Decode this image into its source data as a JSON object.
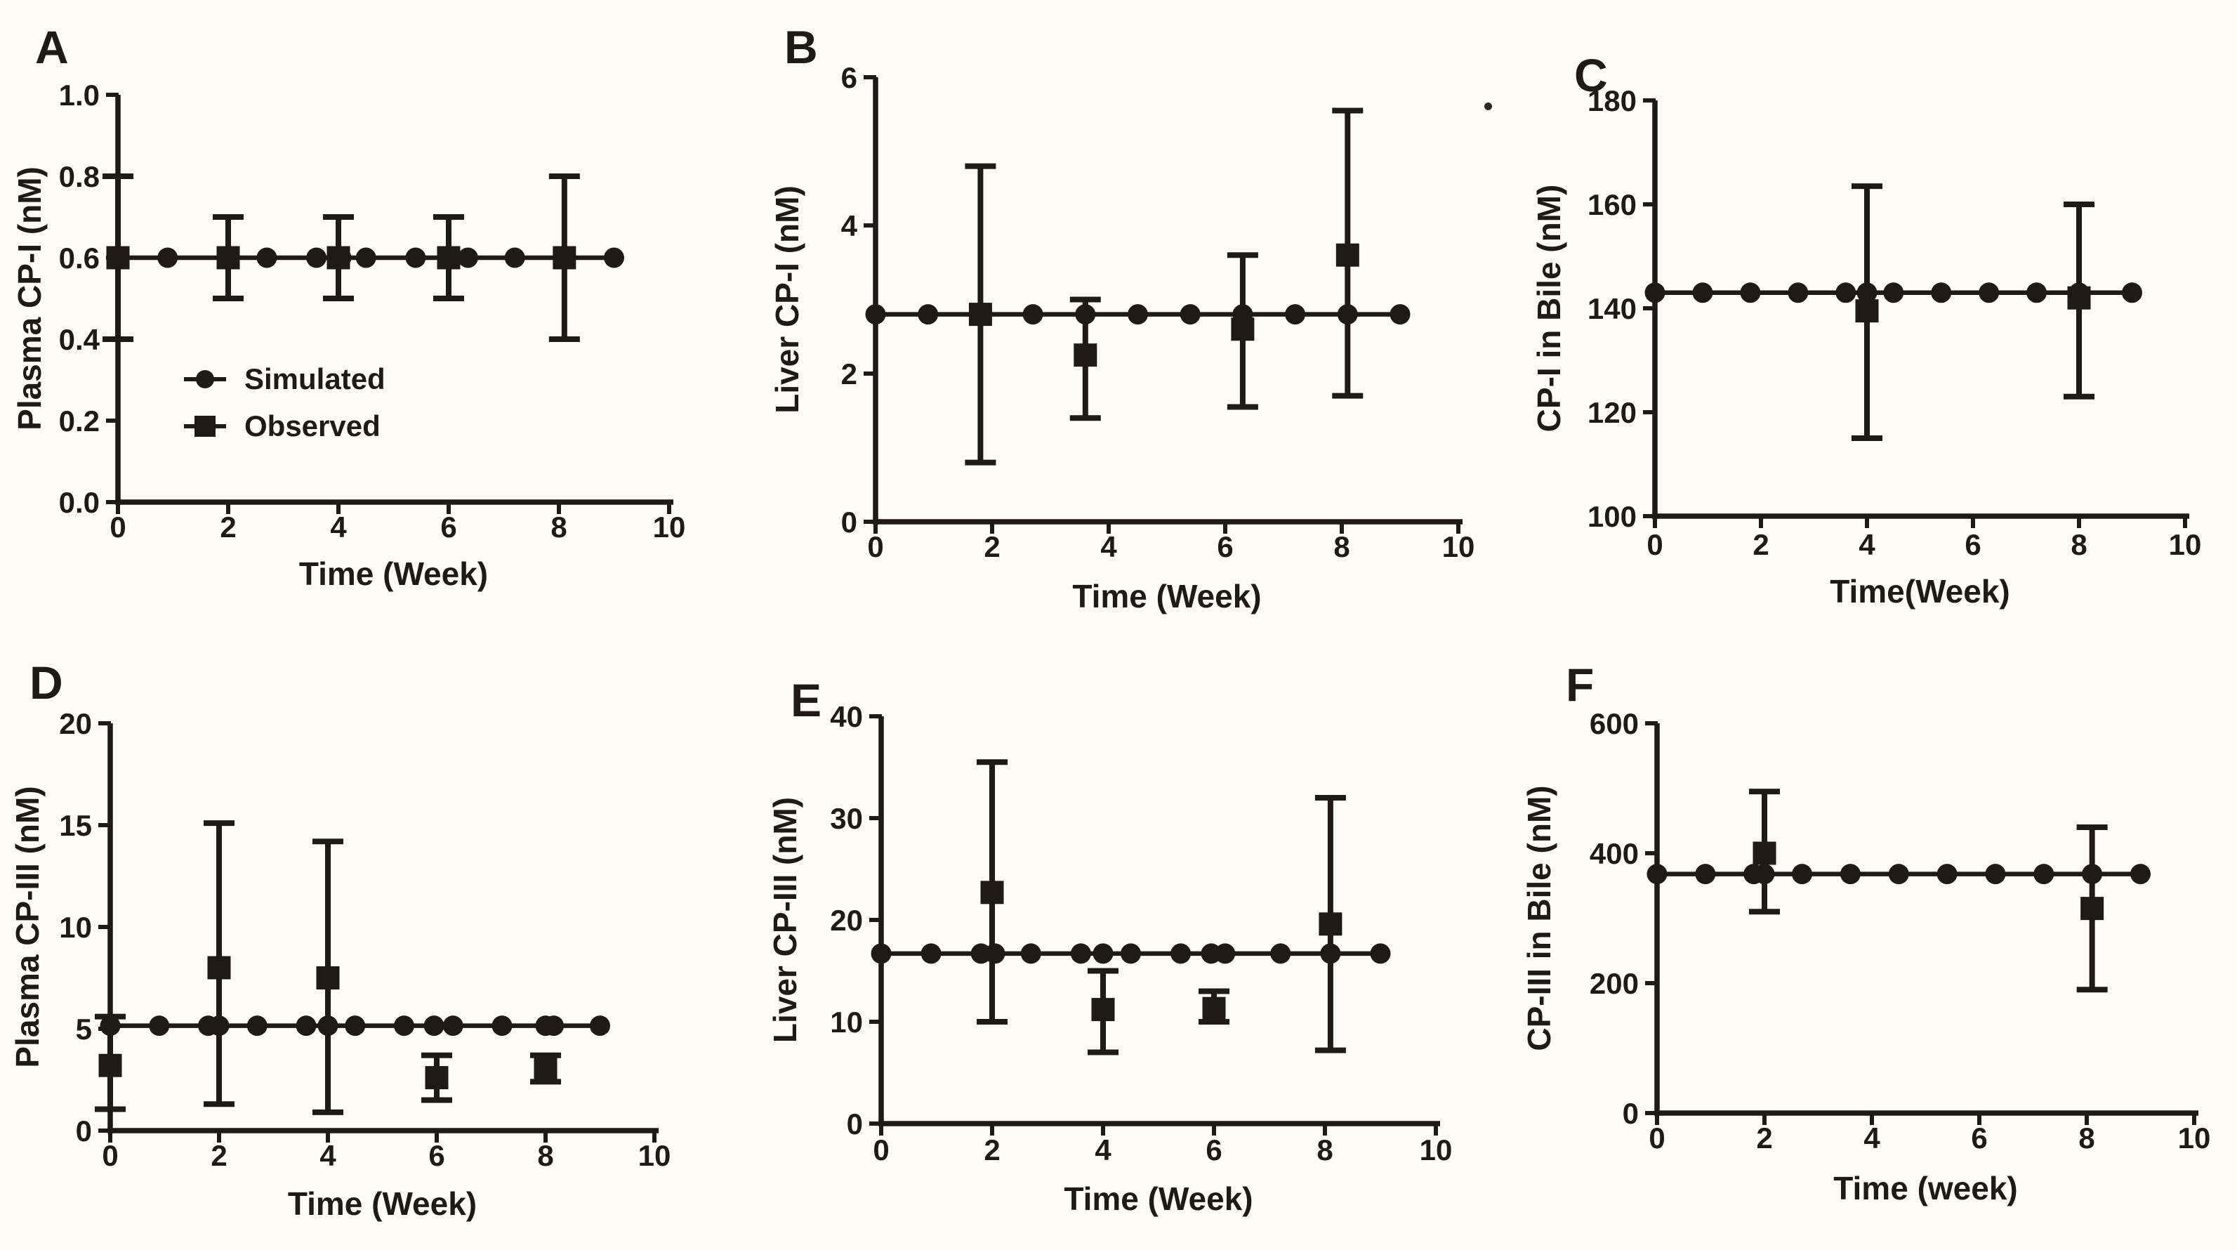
{
  "figure": {
    "background_color": "#fdfcf9",
    "ink_color": "#1d1b19",
    "description": "Six-panel plot of simulated vs observed coproporphyrin concentrations over time"
  },
  "legend": {
    "items": [
      {
        "marker": "circle",
        "label": "Simulated"
      },
      {
        "marker": "square",
        "label": "Observed"
      }
    ],
    "location": "inside panel A, lower left"
  },
  "chart_data": [
    {
      "id": "A",
      "type": "line",
      "panel_label": "A",
      "ylabel": "Plasma CP-I (nM)",
      "xlabel": "Time (Week)",
      "xlim": [
        0,
        10
      ],
      "ylim": [
        0.0,
        1.0
      ],
      "xticks": [
        0,
        2,
        4,
        6,
        8,
        10
      ],
      "yticks": [
        0.0,
        0.2,
        0.4,
        0.6,
        0.8,
        1.0
      ],
      "ytick_decimals": 1,
      "grid": false,
      "show_legend": true,
      "series": [
        {
          "name": "Simulated",
          "marker": "circle",
          "style": "line+markers",
          "y_constant": 0.6,
          "x": [
            0,
            0.9,
            2.0,
            2.7,
            3.6,
            4.05,
            4.5,
            5.4,
            6.0,
            6.35,
            7.2,
            8.1,
            9.0
          ]
        },
        {
          "name": "Observed",
          "marker": "square",
          "style": "points+error-bars",
          "points": [
            {
              "x": 0,
              "y": 0.6,
              "lo": 0.4,
              "hi": 0.8
            },
            {
              "x": 2,
              "y": 0.6,
              "lo": 0.5,
              "hi": 0.7
            },
            {
              "x": 4,
              "y": 0.6,
              "lo": 0.5,
              "hi": 0.7
            },
            {
              "x": 6,
              "y": 0.6,
              "lo": 0.5,
              "hi": 0.7
            },
            {
              "x": 8.1,
              "y": 0.6,
              "lo": 0.4,
              "hi": 0.8
            }
          ]
        }
      ]
    },
    {
      "id": "B",
      "type": "line",
      "panel_label": "B",
      "ylabel": "Liver CP-I (nM)",
      "xlabel": "Time (Week)",
      "xlim": [
        0,
        10
      ],
      "ylim": [
        0,
        6
      ],
      "xticks": [
        0,
        2,
        4,
        6,
        8,
        10
      ],
      "yticks": [
        0,
        2,
        4,
        6
      ],
      "ytick_decimals": 0,
      "grid": false,
      "show_legend": false,
      "series": [
        {
          "name": "Simulated",
          "marker": "circle",
          "style": "line+markers",
          "y_constant": 2.8,
          "x": [
            0,
            0.9,
            1.8,
            2.7,
            3.6,
            4.5,
            5.4,
            6.3,
            7.2,
            8.1,
            9.0
          ]
        },
        {
          "name": "Observed",
          "marker": "square",
          "style": "points+error-bars",
          "points": [
            {
              "x": 1.8,
              "y": 2.8,
              "lo": 0.8,
              "hi": 4.8
            },
            {
              "x": 3.6,
              "y": 2.25,
              "lo": 1.4,
              "hi": 3.0
            },
            {
              "x": 6.3,
              "y": 2.6,
              "lo": 1.55,
              "hi": 3.6
            },
            {
              "x": 8.1,
              "y": 3.6,
              "lo": 1.7,
              "hi": 5.55
            }
          ]
        }
      ]
    },
    {
      "id": "C",
      "type": "line",
      "panel_label": "C",
      "ylabel": "CP-I in Bile (nM)",
      "xlabel": "Time(Week)",
      "xlim": [
        0,
        10
      ],
      "ylim": [
        100,
        180
      ],
      "xticks": [
        0,
        2,
        4,
        6,
        8,
        10
      ],
      "yticks": [
        100,
        120,
        140,
        160,
        180
      ],
      "ytick_decimals": 0,
      "grid": false,
      "show_legend": false,
      "series": [
        {
          "name": "Simulated",
          "marker": "circle",
          "style": "line+markers",
          "y_constant": 143,
          "x": [
            0,
            0.9,
            1.8,
            2.7,
            3.6,
            4.0,
            4.5,
            5.4,
            6.3,
            7.2,
            8.0,
            9.0
          ]
        },
        {
          "name": "Observed",
          "marker": "square",
          "style": "points+error-bars",
          "points": [
            {
              "x": 4,
              "y": 139.5,
              "lo": 115,
              "hi": 163.5
            },
            {
              "x": 8,
              "y": 142,
              "lo": 123,
              "hi": 160
            }
          ]
        }
      ]
    },
    {
      "id": "D",
      "type": "line",
      "panel_label": "D",
      "ylabel": "Plasma CP-III (nM)",
      "xlabel": "Time (Week)",
      "xlim": [
        0,
        10
      ],
      "ylim": [
        0,
        20
      ],
      "xticks": [
        0,
        2,
        4,
        6,
        8,
        10
      ],
      "yticks": [
        0,
        5,
        10,
        15,
        20
      ],
      "ytick_decimals": 0,
      "grid": false,
      "show_legend": false,
      "series": [
        {
          "name": "Simulated",
          "marker": "circle",
          "style": "line+markers",
          "y_constant": 5.15,
          "x": [
            0,
            0.9,
            1.8,
            2.0,
            2.7,
            3.6,
            4.0,
            4.5,
            5.4,
            5.95,
            6.3,
            7.2,
            8.0,
            8.15,
            9.0
          ]
        },
        {
          "name": "Observed",
          "marker": "square",
          "style": "points+error-bars",
          "points": [
            {
              "x": 0,
              "y": 3.2,
              "lo": 1.05,
              "hi": 5.6
            },
            {
              "x": 2,
              "y": 8.0,
              "lo": 1.3,
              "hi": 15.1
            },
            {
              "x": 4,
              "y": 7.5,
              "lo": 0.9,
              "hi": 14.2
            },
            {
              "x": 6,
              "y": 2.6,
              "lo": 1.5,
              "hi": 3.7
            },
            {
              "x": 8,
              "y": 3.0,
              "lo": 2.4,
              "hi": 3.7
            }
          ]
        }
      ]
    },
    {
      "id": "E",
      "type": "line",
      "panel_label": "E",
      "ylabel": "Liver CP-III (nM)",
      "xlabel": "Time (Week)",
      "xlim": [
        0,
        10
      ],
      "ylim": [
        0,
        40
      ],
      "xticks": [
        0,
        2,
        4,
        6,
        8,
        10
      ],
      "yticks": [
        0,
        10,
        20,
        30,
        40
      ],
      "ytick_decimals": 0,
      "grid": false,
      "show_legend": false,
      "series": [
        {
          "name": "Simulated",
          "marker": "circle",
          "style": "line+markers",
          "y_constant": 16.7,
          "x": [
            0,
            0.9,
            1.8,
            2.05,
            2.7,
            3.6,
            4.0,
            4.5,
            5.4,
            5.95,
            6.2,
            7.2,
            8.1,
            9.0
          ]
        },
        {
          "name": "Observed",
          "marker": "square",
          "style": "points+error-bars",
          "points": [
            {
              "x": 2,
              "y": 22.7,
              "lo": 10,
              "hi": 35.5
            },
            {
              "x": 4,
              "y": 11.2,
              "lo": 7,
              "hi": 15
            },
            {
              "x": 6,
              "y": 11.3,
              "lo": 10,
              "hi": 13
            },
            {
              "x": 8.1,
              "y": 19.6,
              "lo": 7.2,
              "hi": 32
            }
          ]
        }
      ]
    },
    {
      "id": "F",
      "type": "line",
      "panel_label": "F",
      "ylabel": "CP-III in Bile (nM)",
      "xlabel": "Time (week)",
      "xlim": [
        0,
        10
      ],
      "ylim": [
        0,
        600
      ],
      "xticks": [
        0,
        2,
        4,
        6,
        8,
        10
      ],
      "yticks": [
        0,
        200,
        400,
        600
      ],
      "ytick_decimals": 0,
      "grid": false,
      "show_legend": false,
      "series": [
        {
          "name": "Simulated",
          "marker": "circle",
          "style": "line+markers",
          "y_constant": 368,
          "x": [
            0,
            0.9,
            1.8,
            2.0,
            2.7,
            3.6,
            4.5,
            5.4,
            6.3,
            7.2,
            8.1,
            9.0
          ]
        },
        {
          "name": "Observed",
          "marker": "square",
          "style": "points+error-bars",
          "points": [
            {
              "x": 2,
              "y": 400,
              "lo": 310,
              "hi": 495
            },
            {
              "x": 8.1,
              "y": 315,
              "lo": 190,
              "hi": 440
            }
          ]
        }
      ]
    }
  ]
}
